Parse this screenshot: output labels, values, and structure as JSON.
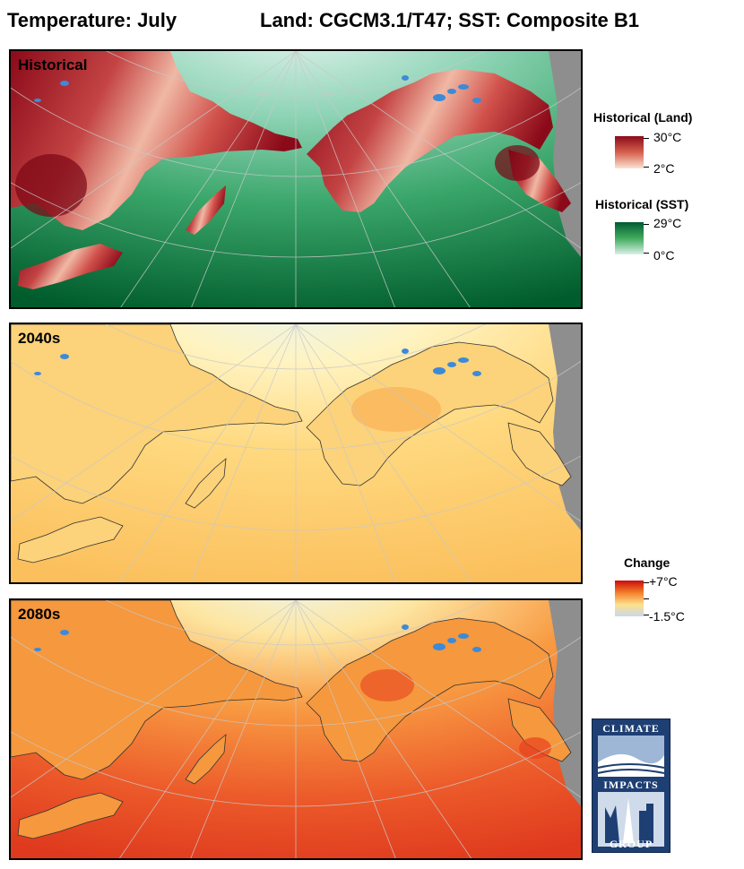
{
  "header": {
    "title_left": "Temperature: July",
    "title_right": "Land: CGCM3.1/T47; SST: Composite B1"
  },
  "panels": [
    {
      "label": "Historical",
      "scheme": "historical"
    },
    {
      "label": "2040s",
      "scheme": "change_mid"
    },
    {
      "label": "2080s",
      "scheme": "change_late"
    }
  ],
  "legends": {
    "land": {
      "title": "Historical (Land)",
      "max_label": "30°C",
      "min_label": "2°C",
      "colors": [
        "#8b0a1a",
        "#d6604d",
        "#fbe3d3"
      ]
    },
    "sst": {
      "title": "Historical (SST)",
      "max_label": "29°C",
      "min_label": "0°C",
      "colors": [
        "#005a32",
        "#41ab5d",
        "#d9f0e8"
      ]
    },
    "change": {
      "title": "Change",
      "max_label": "+7°C",
      "min_label": "-1.5°C",
      "colors": [
        "#cc0b0b",
        "#f47d2a",
        "#fde08a",
        "#c9d8ec"
      ]
    }
  },
  "logo": {
    "line1": "CLIMATE",
    "line2": "IMPACTS",
    "line3": "GROUP"
  }
}
